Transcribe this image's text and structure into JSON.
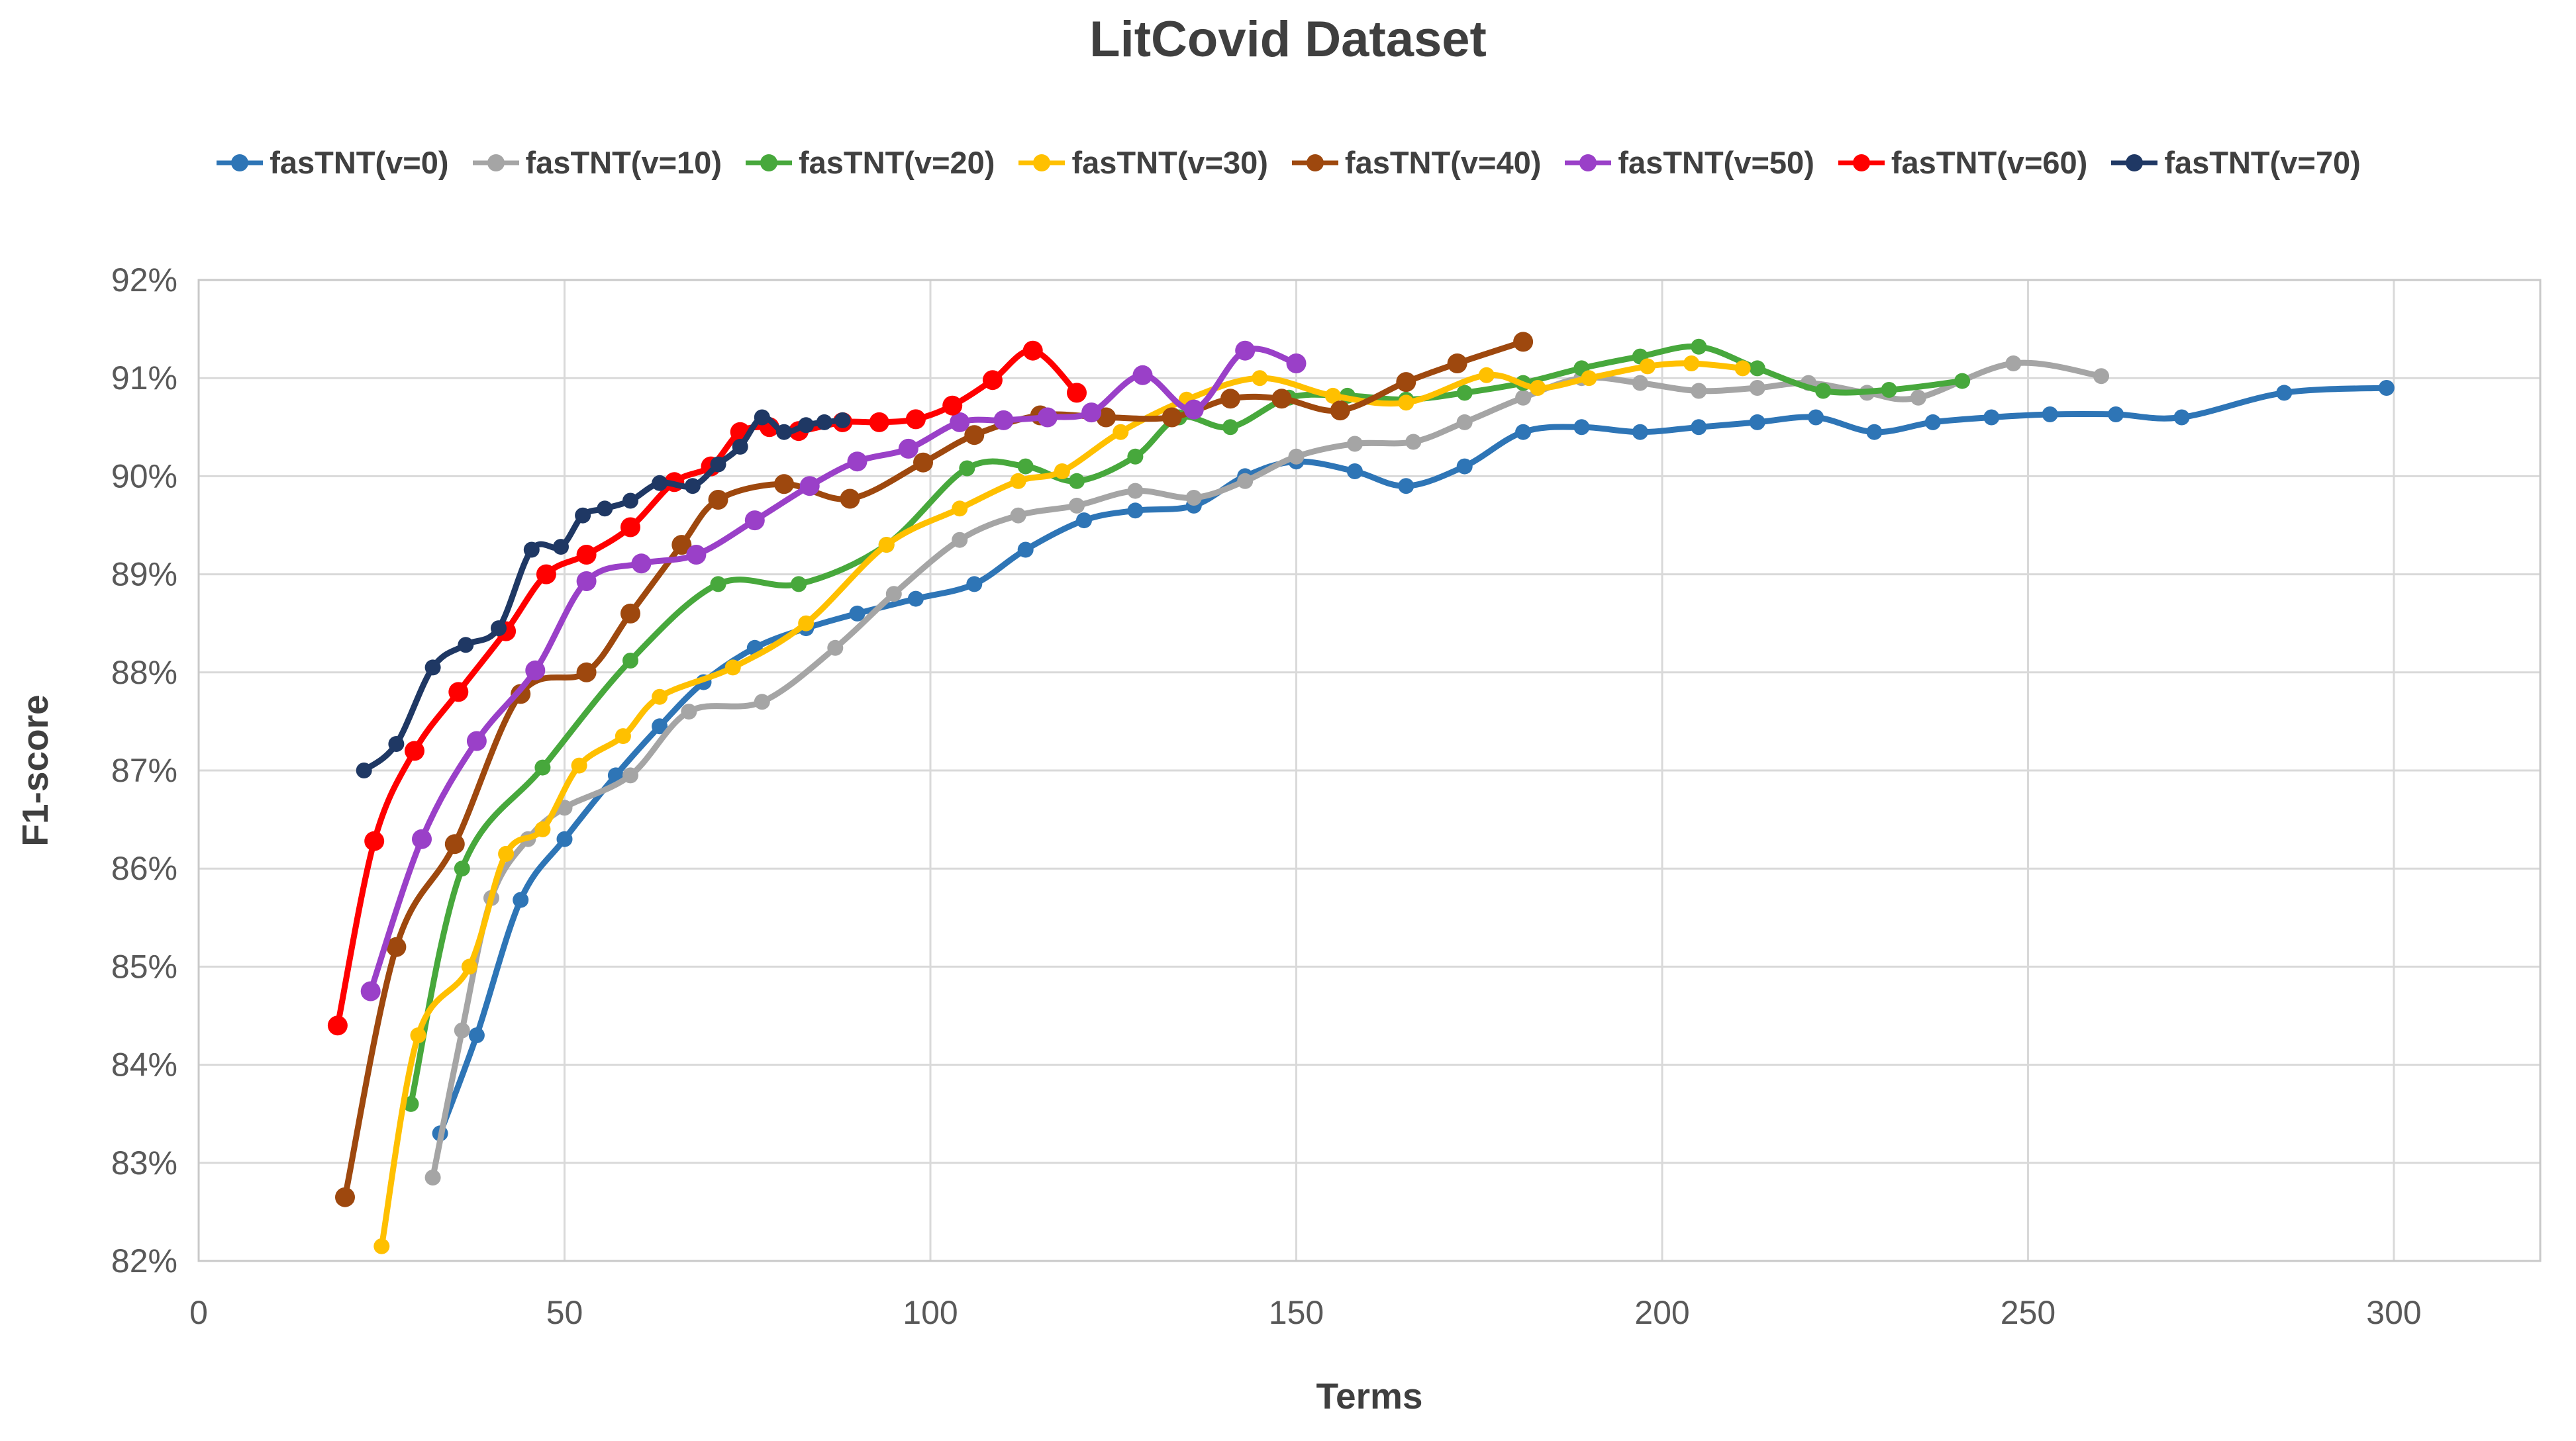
{
  "page": {
    "background": "#ffffff"
  },
  "colors": {
    "grid": "#d9d9d9",
    "plot_border": "#c9c9c9",
    "axis_text": "#595959",
    "title_text": "#3f3f3f"
  },
  "chart_data": {
    "type": "line",
    "title": "LitCovid Dataset",
    "xlabel": "Terms",
    "ylabel": "F1-score",
    "xlim": [
      0,
      320
    ],
    "ylim": [
      82,
      92
    ],
    "x_ticks": [
      0,
      50,
      100,
      150,
      200,
      250,
      300
    ],
    "y_ticks": [
      "82%",
      "83%",
      "84%",
      "85%",
      "86%",
      "87%",
      "88%",
      "89%",
      "90%",
      "91%",
      "92%"
    ],
    "grid": true,
    "legend_position": "top",
    "line_smoothing": true,
    "series": [
      {
        "name": "fasTNT(v=0)",
        "color": "#2E75B6",
        "marker": "circle",
        "points": [
          [
            33,
            83.3
          ],
          [
            38,
            84.3
          ],
          [
            44,
            85.68
          ],
          [
            50,
            86.3
          ],
          [
            57,
            86.95
          ],
          [
            63,
            87.45
          ],
          [
            69,
            87.9
          ],
          [
            76,
            88.25
          ],
          [
            83,
            88.45
          ],
          [
            90,
            88.6
          ],
          [
            98,
            88.75
          ],
          [
            106,
            88.9
          ],
          [
            113,
            89.25
          ],
          [
            121,
            89.55
          ],
          [
            128,
            89.65
          ],
          [
            136,
            89.7
          ],
          [
            143,
            90.0
          ],
          [
            150,
            90.15
          ],
          [
            158,
            90.05
          ],
          [
            165,
            89.9
          ],
          [
            173,
            90.1
          ],
          [
            181,
            90.45
          ],
          [
            189,
            90.5
          ],
          [
            197,
            90.45
          ],
          [
            205,
            90.5
          ],
          [
            213,
            90.55
          ],
          [
            221,
            90.6
          ],
          [
            229,
            90.45
          ],
          [
            237,
            90.55
          ],
          [
            245,
            90.6
          ],
          [
            253,
            90.63
          ],
          [
            262,
            90.63
          ],
          [
            271,
            90.6
          ],
          [
            285,
            90.85
          ],
          [
            299,
            90.9
          ]
        ]
      },
      {
        "name": "fasTNT(v=10)",
        "color": "#A5A5A5",
        "marker": "circle",
        "points": [
          [
            32,
            82.85
          ],
          [
            36,
            84.35
          ],
          [
            40,
            85.7
          ],
          [
            45,
            86.3
          ],
          [
            50,
            86.62
          ],
          [
            59,
            86.95
          ],
          [
            67,
            87.6
          ],
          [
            77,
            87.7
          ],
          [
            87,
            88.25
          ],
          [
            95,
            88.8
          ],
          [
            104,
            89.35
          ],
          [
            112,
            89.6
          ],
          [
            120,
            89.7
          ],
          [
            128,
            89.85
          ],
          [
            136,
            89.78
          ],
          [
            143,
            89.95
          ],
          [
            150,
            90.2
          ],
          [
            158,
            90.33
          ],
          [
            166,
            90.35
          ],
          [
            173,
            90.55
          ],
          [
            181,
            90.8
          ],
          [
            189,
            91.0
          ],
          [
            197,
            90.95
          ],
          [
            205,
            90.87
          ],
          [
            213,
            90.9
          ],
          [
            220,
            90.95
          ],
          [
            228,
            90.85
          ],
          [
            235,
            90.8
          ],
          [
            248,
            91.15
          ],
          [
            260,
            91.02
          ]
        ]
      },
      {
        "name": "fasTNT(v=20)",
        "color": "#47A83C",
        "marker": "circle",
        "points": [
          [
            29,
            83.6
          ],
          [
            36,
            86.0
          ],
          [
            47,
            87.03
          ],
          [
            59,
            88.12
          ],
          [
            71,
            88.9
          ],
          [
            82,
            88.9
          ],
          [
            94,
            89.3
          ],
          [
            105,
            90.08
          ],
          [
            113,
            90.1
          ],
          [
            120,
            89.95
          ],
          [
            128,
            90.2
          ],
          [
            134,
            90.6
          ],
          [
            141,
            90.5
          ],
          [
            149,
            90.8
          ],
          [
            157,
            90.82
          ],
          [
            165,
            90.78
          ],
          [
            173,
            90.85
          ],
          [
            181,
            90.95
          ],
          [
            189,
            91.1
          ],
          [
            197,
            91.22
          ],
          [
            205,
            91.32
          ],
          [
            213,
            91.1
          ],
          [
            222,
            90.87
          ],
          [
            231,
            90.88
          ],
          [
            241,
            90.97
          ]
        ]
      },
      {
        "name": "fasTNT(v=30)",
        "color": "#FFC000",
        "marker": "circle",
        "points": [
          [
            25,
            82.15
          ],
          [
            30,
            84.3
          ],
          [
            37,
            85.0
          ],
          [
            42,
            86.15
          ],
          [
            47,
            86.4
          ],
          [
            52,
            87.05
          ],
          [
            58,
            87.35
          ],
          [
            63,
            87.75
          ],
          [
            73,
            88.05
          ],
          [
            83,
            88.5
          ],
          [
            94,
            89.3
          ],
          [
            104,
            89.67
          ],
          [
            112,
            89.95
          ],
          [
            118,
            90.05
          ],
          [
            126,
            90.45
          ],
          [
            135,
            90.78
          ],
          [
            145,
            91.0
          ],
          [
            155,
            90.82
          ],
          [
            165,
            90.75
          ],
          [
            176,
            91.03
          ],
          [
            183,
            90.9
          ],
          [
            190,
            91.0
          ],
          [
            198,
            91.12
          ],
          [
            204,
            91.15
          ],
          [
            211,
            91.1
          ]
        ]
      },
      {
        "name": "fasTNT(v=40)",
        "color": "#9E480E",
        "marker": "circle",
        "points": [
          [
            20,
            82.65
          ],
          [
            27,
            85.2
          ],
          [
            35,
            86.25
          ],
          [
            44,
            87.78
          ],
          [
            53,
            88.0
          ],
          [
            59,
            88.6
          ],
          [
            66,
            89.3
          ],
          [
            71,
            89.76
          ],
          [
            80,
            89.92
          ],
          [
            89,
            89.77
          ],
          [
            99,
            90.14
          ],
          [
            106,
            90.42
          ],
          [
            115,
            90.62
          ],
          [
            124,
            90.6
          ],
          [
            133,
            90.6
          ],
          [
            141,
            90.79
          ],
          [
            148,
            90.79
          ],
          [
            156,
            90.67
          ],
          [
            165,
            90.96
          ],
          [
            172,
            91.15
          ],
          [
            181,
            91.37
          ]
        ]
      },
      {
        "name": "fasTNT(v=50)",
        "color": "#9A40C8",
        "marker": "circle",
        "points": [
          [
            23.5,
            84.75
          ],
          [
            30.5,
            86.3
          ],
          [
            38,
            87.3
          ],
          [
            46,
            88.02
          ],
          [
            53,
            88.93
          ],
          [
            60.5,
            89.11
          ],
          [
            68,
            89.2
          ],
          [
            76,
            89.55
          ],
          [
            83.5,
            89.9
          ],
          [
            90,
            90.15
          ],
          [
            97,
            90.28
          ],
          [
            104,
            90.55
          ],
          [
            110,
            90.57
          ],
          [
            116,
            90.6
          ],
          [
            122,
            90.65
          ],
          [
            129,
            91.03
          ],
          [
            136,
            90.68
          ],
          [
            143,
            91.28
          ],
          [
            150,
            91.15
          ]
        ]
      },
      {
        "name": "fasTNT(v=60)",
        "color": "#FF0000",
        "marker": "circle",
        "points": [
          [
            19,
            84.4
          ],
          [
            24,
            86.28
          ],
          [
            29.5,
            87.2
          ],
          [
            35.5,
            87.8
          ],
          [
            42,
            88.42
          ],
          [
            47.5,
            89.0
          ],
          [
            53,
            89.2
          ],
          [
            59,
            89.48
          ],
          [
            65,
            89.94
          ],
          [
            70,
            90.1
          ],
          [
            74,
            90.45
          ],
          [
            78,
            90.5
          ],
          [
            82,
            90.46
          ],
          [
            88,
            90.55
          ],
          [
            93,
            90.55
          ],
          [
            98,
            90.58
          ],
          [
            103,
            90.72
          ],
          [
            108.5,
            90.98
          ],
          [
            114,
            91.28
          ],
          [
            120,
            90.85
          ]
        ]
      },
      {
        "name": "fasTNT(v=70)",
        "color": "#1F3864",
        "marker": "circle",
        "points": [
          [
            22.6,
            87.0
          ],
          [
            27,
            87.27
          ],
          [
            32,
            88.05
          ],
          [
            36.5,
            88.28
          ],
          [
            41,
            88.45
          ],
          [
            45.5,
            89.25
          ],
          [
            49.5,
            89.28
          ],
          [
            52.5,
            89.6
          ],
          [
            55.5,
            89.67
          ],
          [
            59,
            89.75
          ],
          [
            63,
            89.93
          ],
          [
            67.5,
            89.9
          ],
          [
            71,
            90.12
          ],
          [
            74,
            90.3
          ],
          [
            77,
            90.6
          ],
          [
            80,
            90.45
          ],
          [
            83,
            90.52
          ],
          [
            85.5,
            90.55
          ],
          [
            88,
            90.57
          ]
        ]
      }
    ]
  }
}
